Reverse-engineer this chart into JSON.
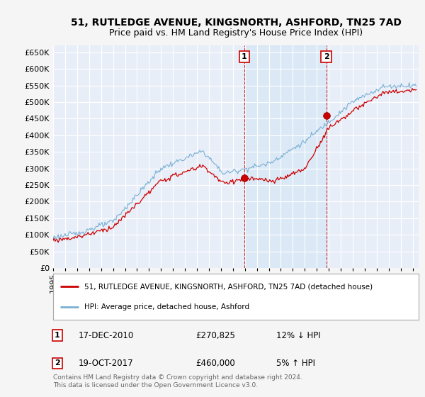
{
  "title": "51, RUTLEDGE AVENUE, KINGSNORTH, ASHFORD, TN25 7AD",
  "subtitle": "Price paid vs. HM Land Registry's House Price Index (HPI)",
  "ylim": [
    0,
    670000
  ],
  "yticks": [
    0,
    50000,
    100000,
    150000,
    200000,
    250000,
    300000,
    350000,
    400000,
    450000,
    500000,
    550000,
    600000,
    650000
  ],
  "xlim_start": 1995.0,
  "xlim_end": 2025.5,
  "fig_bg": "#f5f5f5",
  "plot_bg": "#e8eef8",
  "grid_color": "#ffffff",
  "red_line_color": "#cc0000",
  "blue_line_color": "#7ab0d4",
  "shade_color": "#d0e4f5",
  "sale1_x": 2010.96,
  "sale1_y": 270825,
  "sale1_label": "1",
  "sale1_date": "17-DEC-2010",
  "sale1_price": "£270,825",
  "sale1_hpi": "12% ↓ HPI",
  "sale2_x": 2017.79,
  "sale2_y": 460000,
  "sale2_label": "2",
  "sale2_date": "19-OCT-2017",
  "sale2_price": "£460,000",
  "sale2_hpi": "5% ↑ HPI",
  "legend_red_label": "51, RUTLEDGE AVENUE, KINGSNORTH, ASHFORD, TN25 7AD (detached house)",
  "legend_blue_label": "HPI: Average price, detached house, Ashford",
  "footer": "Contains HM Land Registry data © Crown copyright and database right 2024.\nThis data is licensed under the Open Government Licence v3.0.",
  "title_fontsize": 10,
  "subtitle_fontsize": 9,
  "tick_fontsize": 8,
  "legend_fontsize": 7.5,
  "table_fontsize": 8.5,
  "footer_fontsize": 6.5
}
